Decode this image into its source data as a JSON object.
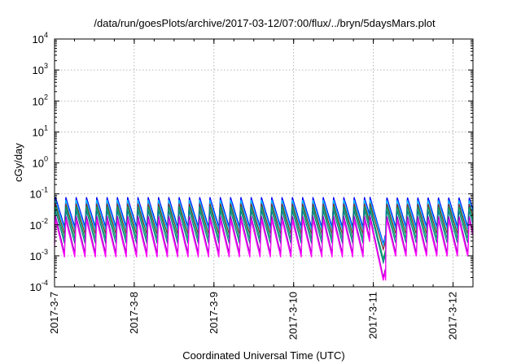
{
  "chart_data": {
    "type": "line",
    "title": "/data/run/goesPlots/archive/2017-03-12/07:00/flux/../bryn/5daysMars.plot",
    "xlabel": "Coordinated Universal Time (UTC)",
    "ylabel": "cGy/day",
    "y_scale": "log",
    "ylim": [
      "1e-4",
      "1e4"
    ],
    "xlim": [
      "2017-03-07 00:00",
      "2017-03-12 06:00"
    ],
    "grid": true,
    "x_ticks": [
      "2017-3-7",
      "2017-3-8",
      "2017-3-9",
      "2017-3-10",
      "2017-3-11",
      "2017-3-12"
    ],
    "y_ticks": [
      {
        "base": "10",
        "exp": "-4"
      },
      {
        "base": "10",
        "exp": "-3"
      },
      {
        "base": "10",
        "exp": "-2"
      },
      {
        "base": "10",
        "exp": "-1"
      },
      {
        "base": "10",
        "exp": "0"
      },
      {
        "base": "10",
        "exp": "1"
      },
      {
        "base": "10",
        "exp": "2"
      },
      {
        "base": "10",
        "exp": "3"
      },
      {
        "base": "10",
        "exp": "4"
      }
    ],
    "sawtooth": {
      "period_hours": 3.1,
      "dip_time": "2017-03-11 03:00",
      "recovery_time": "2017-03-11 03:40"
    },
    "series": [
      {
        "color": "#0000ff",
        "peak": 0.08,
        "trough": 0.0085,
        "dip_min": 0.0025
      },
      {
        "color": "#00c0ff",
        "peak": 0.065,
        "trough": 0.007,
        "dip_min": 0.0022
      },
      {
        "color": "#7b2f2f",
        "peak": 0.05,
        "trough": 0.005,
        "dip_min": 0.0016
      },
      {
        "color": "#00a060",
        "peak": 0.04,
        "trough": 0.0035,
        "dip_min": 0.0008
      },
      {
        "color": "#008080",
        "peak": 0.03,
        "trough": 0.0025,
        "dip_min": 0.0006
      },
      {
        "color": "#a000c0",
        "peak": 0.02,
        "trough": 0.0012,
        "dip_min": 0.0002
      },
      {
        "color": "#ff00ff",
        "peak": 0.015,
        "trough": 0.0009,
        "dip_min": 0.00016
      }
    ]
  }
}
